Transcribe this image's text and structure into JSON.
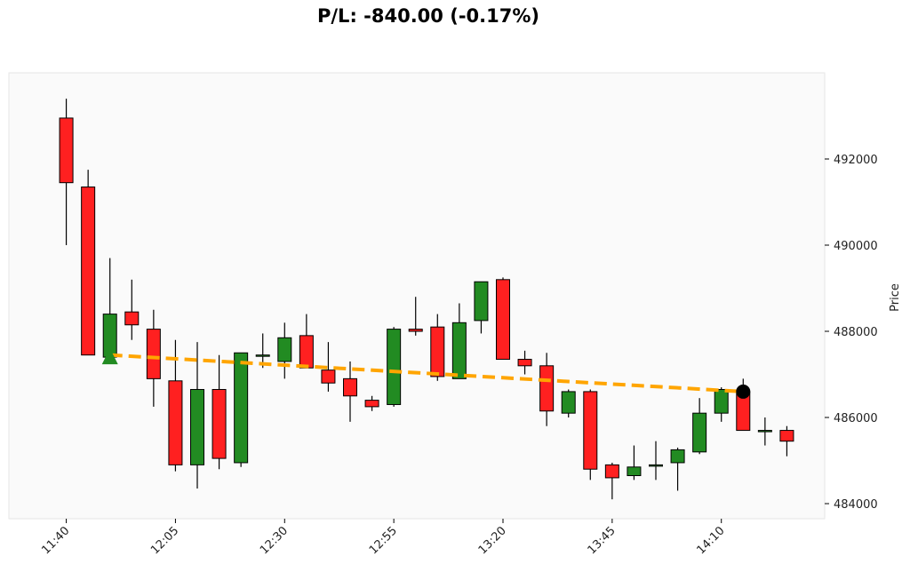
{
  "title": "P/L: -840.00 (-0.17%)",
  "chart_data": {
    "type": "candlestick",
    "ylabel": "Price",
    "xlabel": "",
    "x_ticks": [
      "11:40",
      "12:05",
      "12:30",
      "12:55",
      "13:20",
      "13:45",
      "14:10"
    ],
    "y_ticks": [
      484000,
      486000,
      488000,
      490000,
      492000
    ],
    "ylim": [
      483650,
      494000
    ],
    "x_start": "11:35",
    "x_end": "14:30",
    "grid": false,
    "up_color": "#228B22",
    "down_color": "#FF2020",
    "trend_color": "#FFA500",
    "candles": [
      {
        "t": "11:40",
        "o": 492950,
        "h": 493400,
        "l": 490000,
        "c": 491450
      },
      {
        "t": "11:45",
        "o": 491350,
        "h": 491750,
        "l": 487450,
        "c": 487450
      },
      {
        "t": "11:50",
        "o": 487400,
        "h": 489700,
        "l": 487400,
        "c": 488400
      },
      {
        "t": "11:55",
        "o": 488450,
        "h": 489200,
        "l": 487800,
        "c": 488150
      },
      {
        "t": "12:00",
        "o": 488050,
        "h": 488500,
        "l": 486250,
        "c": 486900
      },
      {
        "t": "12:05",
        "o": 486850,
        "h": 487800,
        "l": 484750,
        "c": 484900
      },
      {
        "t": "12:10",
        "o": 484900,
        "h": 487750,
        "l": 484350,
        "c": 486650
      },
      {
        "t": "12:15",
        "o": 486650,
        "h": 487450,
        "l": 484800,
        "c": 485050
      },
      {
        "t": "12:20",
        "o": 484950,
        "h": 487500,
        "l": 484850,
        "c": 487500
      },
      {
        "t": "12:25",
        "o": 487450,
        "h": 487950,
        "l": 487150,
        "c": 487450
      },
      {
        "t": "12:30",
        "o": 487300,
        "h": 488200,
        "l": 486900,
        "c": 487850
      },
      {
        "t": "12:35",
        "o": 487900,
        "h": 488400,
        "l": 487150,
        "c": 487150
      },
      {
        "t": "12:40",
        "o": 487100,
        "h": 487750,
        "l": 486600,
        "c": 486800
      },
      {
        "t": "12:45",
        "o": 486900,
        "h": 487300,
        "l": 485900,
        "c": 486500
      },
      {
        "t": "12:50",
        "o": 486400,
        "h": 486500,
        "l": 486150,
        "c": 486250
      },
      {
        "t": "12:55",
        "o": 486300,
        "h": 488100,
        "l": 486250,
        "c": 488050
      },
      {
        "t": "13:00",
        "o": 488050,
        "h": 488800,
        "l": 487900,
        "c": 488000
      },
      {
        "t": "13:05",
        "o": 488100,
        "h": 488400,
        "l": 486850,
        "c": 486950
      },
      {
        "t": "13:10",
        "o": 486900,
        "h": 488650,
        "l": 486900,
        "c": 488200
      },
      {
        "t": "13:15",
        "o": 488250,
        "h": 489150,
        "l": 487950,
        "c": 489150
      },
      {
        "t": "13:20",
        "o": 489200,
        "h": 489250,
        "l": 487350,
        "c": 487350
      },
      {
        "t": "13:25",
        "o": 487350,
        "h": 487550,
        "l": 487000,
        "c": 487200
      },
      {
        "t": "13:30",
        "o": 487200,
        "h": 487500,
        "l": 485800,
        "c": 486150
      },
      {
        "t": "13:35",
        "o": 486100,
        "h": 486650,
        "l": 486000,
        "c": 486600
      },
      {
        "t": "13:40",
        "o": 486600,
        "h": 486650,
        "l": 484550,
        "c": 484800
      },
      {
        "t": "13:45",
        "o": 484900,
        "h": 484950,
        "l": 484100,
        "c": 484600
      },
      {
        "t": "13:50",
        "o": 484650,
        "h": 485350,
        "l": 484550,
        "c": 484850
      },
      {
        "t": "13:55",
        "o": 484900,
        "h": 485450,
        "l": 484550,
        "c": 484900
      },
      {
        "t": "14:00",
        "o": 484950,
        "h": 485300,
        "l": 484300,
        "c": 485250
      },
      {
        "t": "14:05",
        "o": 485200,
        "h": 486450,
        "l": 485150,
        "c": 486100
      },
      {
        "t": "14:10",
        "o": 486100,
        "h": 486700,
        "l": 485900,
        "c": 486650
      },
      {
        "t": "14:15",
        "o": 486600,
        "h": 486900,
        "l": 485700,
        "c": 485700
      },
      {
        "t": "14:20",
        "o": 485700,
        "h": 486000,
        "l": 485350,
        "c": 485700
      },
      {
        "t": "14:25",
        "o": 485700,
        "h": 485800,
        "l": 485100,
        "c": 485450
      }
    ],
    "trend_line": {
      "start": {
        "t": "11:50",
        "price": 487450
      },
      "end": {
        "t": "14:15",
        "price": 486600
      }
    },
    "markers": [
      {
        "type": "entry",
        "shape": "triangle-up",
        "t": "11:50",
        "price": 487400,
        "color": "#228B22"
      },
      {
        "type": "exit",
        "shape": "circle",
        "t": "14:15",
        "price": 486600,
        "color": "#000000"
      }
    ]
  }
}
